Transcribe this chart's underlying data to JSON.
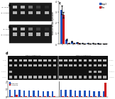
{
  "panel_c": {
    "foxp3_values": [
      3.2,
      0.4,
      0.22,
      0.15,
      0.1,
      0.08,
      0.06,
      0.05,
      0.04
    ],
    "tnn_values": [
      2.7,
      0.1,
      0.06,
      0.05,
      0.03,
      0.03,
      0.02,
      0.02,
      0.02
    ],
    "foxp3_color": "#2255bb",
    "tnn_color": "#cc1111",
    "ylabel": "Relative mRNA expression",
    "ylim": [
      0,
      4.0
    ],
    "yticks": [
      0,
      1,
      2,
      3,
      4
    ],
    "legend_foxp3": "Foxp3",
    "legend_tnn": "Tnn"
  },
  "panel_d_bottom": {
    "fox_left": [
      0.9,
      0.88,
      0.85,
      0.83,
      0.8,
      0.78,
      0.75,
      0.73,
      0.7,
      0.68
    ],
    "tnn_left": [
      0.04,
      0.28,
      0.04,
      0.04,
      0.04,
      0.04,
      0.04,
      0.04,
      0.04,
      0.04
    ],
    "fox_right": [
      0.9,
      0.88,
      0.85,
      0.83,
      0.8,
      0.78,
      0.75,
      0.73,
      0.7,
      0.68
    ],
    "tnn_right": [
      0.04,
      0.04,
      0.04,
      0.04,
      0.04,
      0.04,
      0.04,
      0.04,
      0.04,
      1.8
    ],
    "blue": "#2255bb",
    "red": "#cc1111",
    "ylim": [
      0,
      2.0
    ],
    "legend_foxp3": "Foxp3/RPS",
    "legend_tnn": "Tnn3/RPS"
  },
  "background": "#ffffff",
  "gel_dark": "#111111",
  "gel_band": "#dddddd",
  "gel_label_color": "#222222"
}
